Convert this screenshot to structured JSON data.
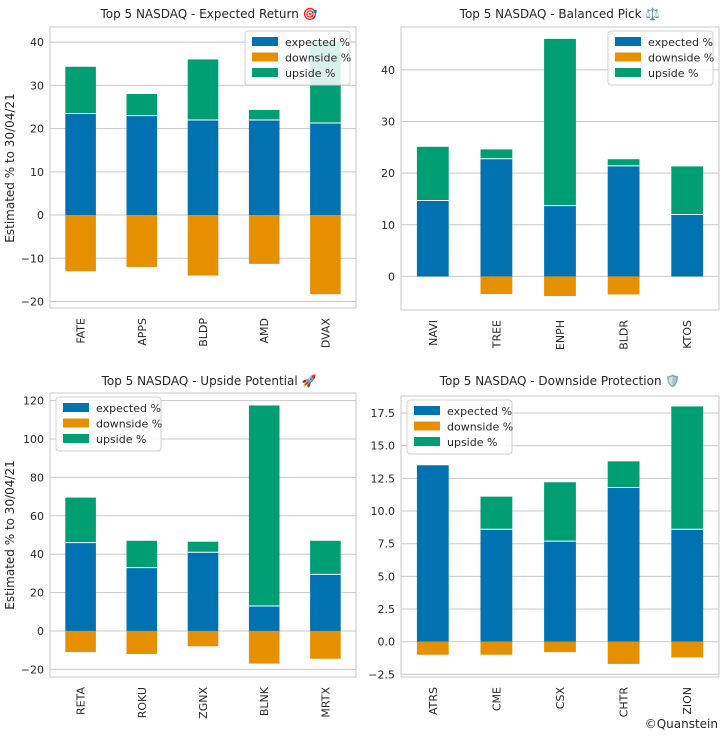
{
  "colors": {
    "expected": "#0072b2",
    "downside": "#e69000",
    "upside": "#009e73",
    "grid": "#c8c8c8",
    "frame": "#c8c8c8"
  },
  "footer": {
    "copyright": "©Quanstein"
  },
  "chart_data": [
    {
      "type": "bar",
      "stacked": true,
      "title": "Top 5 NASDAQ - Expected Return 🎯",
      "ylabel": "Estimated % to 30/04/21",
      "categories": [
        "FATE",
        "APPS",
        "BLDP",
        "AMD",
        "DVAX"
      ],
      "ylim": [
        -21.5,
        43.5
      ],
      "yticks": [
        -20,
        -10,
        0,
        10,
        20,
        30,
        40
      ],
      "ytick_labels": [
        "−20",
        "−10",
        "0",
        "10",
        "20",
        "30",
        "40"
      ],
      "legend_loc": "upper right",
      "series": [
        {
          "name": "expected %",
          "key": "expected",
          "values": [
            23.5,
            23.0,
            22.0,
            22.0,
            21.3
          ]
        },
        {
          "name": "downside %",
          "key": "downside",
          "values": [
            -13.0,
            -12.0,
            -14.0,
            -11.3,
            -18.3
          ]
        },
        {
          "name": "upside %",
          "key": "upside",
          "values": [
            10.8,
            5.0,
            14.0,
            2.3,
            18.7
          ]
        }
      ]
    },
    {
      "type": "bar",
      "stacked": true,
      "title": "Top 5 NASDAQ - Balanced Pick ⚖️",
      "ylabel": "",
      "categories": [
        "NAVI",
        "TREE",
        "ENPH",
        "BLDR",
        "KTOS"
      ],
      "ylim": [
        -6.5,
        48.3
      ],
      "yticks": [
        0,
        10,
        20,
        30,
        40
      ],
      "ytick_labels": [
        "0",
        "10",
        "20",
        "30",
        "40"
      ],
      "legend_loc": "upper right",
      "series": [
        {
          "name": "expected %",
          "key": "expected",
          "values": [
            14.7,
            22.8,
            13.7,
            21.4,
            12.0
          ]
        },
        {
          "name": "downside %",
          "key": "downside",
          "values": [
            0,
            -3.4,
            -3.8,
            -3.5,
            0
          ]
        },
        {
          "name": "upside %",
          "key": "upside",
          "values": [
            10.4,
            1.8,
            32.3,
            1.3,
            9.3
          ]
        }
      ]
    },
    {
      "type": "bar",
      "stacked": true,
      "title": "Top 5 NASDAQ - Upside Potential 🚀",
      "ylabel": "Estimated % to 30/04/21",
      "categories": [
        "RETA",
        "ROKU",
        "ZGNX",
        "BLNK",
        "MRTX"
      ],
      "ylim": [
        -24,
        124
      ],
      "yticks": [
        -20,
        0,
        20,
        40,
        60,
        80,
        100,
        120
      ],
      "ytick_labels": [
        "−20",
        "0",
        "20",
        "40",
        "60",
        "80",
        "100",
        "120"
      ],
      "legend_loc": "upper left",
      "series": [
        {
          "name": "expected %",
          "key": "expected",
          "values": [
            46.0,
            33.0,
            41.0,
            13.0,
            29.5
          ]
        },
        {
          "name": "downside %",
          "key": "downside",
          "values": [
            -11.0,
            -12.0,
            -8.0,
            -17.0,
            -14.5
          ]
        },
        {
          "name": "upside %",
          "key": "upside",
          "values": [
            23.5,
            14.0,
            5.5,
            104.5,
            17.5
          ]
        }
      ]
    },
    {
      "type": "bar",
      "stacked": true,
      "title": "Top 5 NASDAQ - Downside Protection 🛡️",
      "ylabel": "",
      "categories": [
        "ATRS",
        "CME",
        "CSX",
        "CHTR",
        "ZION"
      ],
      "ylim": [
        -2.7,
        18.8
      ],
      "yticks": [
        -2.5,
        0.0,
        2.5,
        5.0,
        7.5,
        10.0,
        12.5,
        15.0,
        17.5
      ],
      "ytick_labels": [
        "−2.5",
        "0.0",
        "2.5",
        "5.0",
        "7.5",
        "10.0",
        "12.5",
        "15.0",
        "17.5"
      ],
      "legend_loc": "upper left",
      "series": [
        {
          "name": "expected %",
          "key": "expected",
          "values": [
            13.5,
            8.6,
            7.7,
            11.8,
            8.6
          ]
        },
        {
          "name": "downside %",
          "key": "downside",
          "values": [
            -1.0,
            -1.0,
            -0.8,
            -1.7,
            -1.2
          ]
        },
        {
          "name": "upside %",
          "key": "upside",
          "values": [
            0,
            2.5,
            4.5,
            2.0,
            9.4
          ]
        }
      ]
    }
  ]
}
